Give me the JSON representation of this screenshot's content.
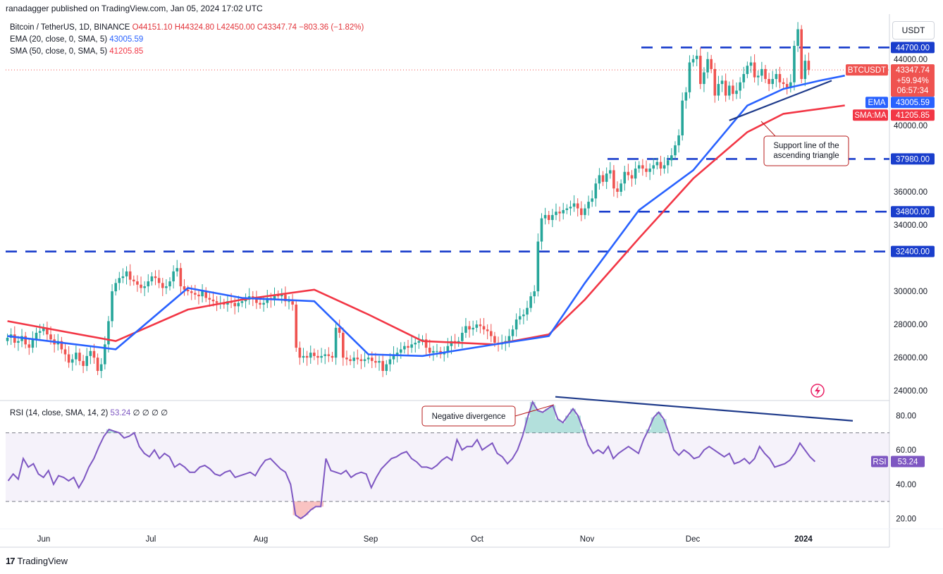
{
  "publisher_line": "ranadagger published on TradingView.com, Jan 05, 2024 17:02 UTC",
  "legend": {
    "symbol": "Bitcoin / TetherUS, 1D, BINANCE",
    "ohlc": "O44151.10 H44324.80 L42450.00 C43347.74 −803.36 (−1.82%)",
    "ema_label": "EMA (20, close, 0, SMA, 5)",
    "ema_value": "43005.59",
    "sma_label": "SMA (50, close, 0, SMA, 5)",
    "sma_value": "41205.85"
  },
  "rsi_legend": {
    "label": "RSI (14, close, SMA, 14, 2)",
    "value": "53.24",
    "extras": "∅ ∅ ∅ ∅"
  },
  "currency_button": "USDT",
  "footer": {
    "brand": "TradingView",
    "mark": "17"
  },
  "colors": {
    "up": "#26a69a",
    "down": "#ef5350",
    "ema": "#2962ff",
    "sma": "#f23645",
    "rsi": "#7e57c2",
    "level": "#1a3ecc"
  },
  "chart_data": [
    {
      "type": "candlestick",
      "symbol": "BTCUSDT",
      "x_ticks": [
        "Jun",
        "Jul",
        "Aug",
        "Sep",
        "Oct",
        "Nov",
        "Dec",
        "2024"
      ],
      "y_ticks": [
        "24000.00",
        "26000.00",
        "28000.00",
        "30000.00",
        "34000.00",
        "36000.00",
        "40000.00",
        "44000.00"
      ],
      "ylim": [
        23500,
        46500
      ],
      "last_price": "43347.74",
      "last_change": "+59.94%",
      "countdown": "06:57:34",
      "price_tag_label": "BTCUSDT",
      "ema_tag": {
        "label": "EMA",
        "value": "43005.59"
      },
      "sma_tag": {
        "label": "SMA:MA",
        "value": "41205.85"
      },
      "horizontal_levels": [
        {
          "value": 44700,
          "label": "44700.00"
        },
        {
          "value": 37980,
          "label": "37980.00"
        },
        {
          "value": 34800,
          "label": "34800.00"
        },
        {
          "value": 32400,
          "label": "32400.00"
        }
      ],
      "close_series": [
        27200,
        27400,
        26900,
        27000,
        27300,
        26800,
        26600,
        27100,
        27500,
        27600,
        27800,
        27400,
        27100,
        26800,
        27000,
        26500,
        26200,
        25700,
        25900,
        26300,
        25800,
        25500,
        26100,
        26400,
        26000,
        25200,
        25600,
        26800,
        28200,
        30000,
        30500,
        30800,
        30900,
        31200,
        30700,
        30600,
        30400,
        30200,
        30300,
        30600,
        30900,
        30800,
        30500,
        30200,
        30300,
        30600,
        31200,
        31400,
        30300,
        30100,
        30000,
        29900,
        29800,
        29700,
        30000,
        29600,
        29500,
        29400,
        29300,
        29300,
        29200,
        29400,
        29300,
        29100,
        29300,
        29400,
        29500,
        29700,
        29600,
        29300,
        29200,
        29300,
        29600,
        29500,
        29800,
        29700,
        29800,
        29400,
        29400,
        29200,
        26600,
        26000,
        26100,
        26000,
        26300,
        26100,
        26000,
        26100,
        26200,
        26100,
        26000,
        27800,
        27500,
        26000,
        25900,
        25800,
        26000,
        25900,
        25800,
        25900,
        26000,
        25800,
        25700,
        25800,
        25200,
        25600,
        25900,
        26200,
        26300,
        26500,
        26700,
        26600,
        26800,
        26900,
        27000,
        27100,
        26600,
        26300,
        26400,
        26400,
        26200,
        26300,
        26700,
        27000,
        26900,
        27000,
        27500,
        27900,
        27700,
        27800,
        28000,
        27900,
        27700,
        27600,
        27300,
        26900,
        26800,
        26900,
        27000,
        27300,
        27700,
        28300,
        28500,
        28600,
        29000,
        29700,
        30000,
        33000,
        34400,
        34600,
        34300,
        34600,
        34800,
        34700,
        34900,
        35000,
        35100,
        35300,
        35000,
        34600,
        35000,
        35400,
        35600,
        36500,
        37000,
        36600,
        37100,
        37300,
        36200,
        36000,
        36500,
        37200,
        37000,
        36800,
        37400,
        37600,
        37400,
        37200,
        37400,
        37600,
        37800,
        37400,
        37600,
        37900,
        38200,
        38800,
        39400,
        41500,
        42000,
        43800,
        44000,
        44200,
        42500,
        43200,
        44000,
        43400,
        41800,
        42500,
        42700,
        41800,
        42400,
        41900,
        42100,
        42600,
        43100,
        43600,
        43800,
        42900,
        43000,
        43400,
        42800,
        42500,
        42800,
        43100,
        42600,
        42500,
        42300,
        42600,
        44800,
        45800,
        42800,
        43900,
        43347.74
      ],
      "ema_points": [
        [
          0,
          27300
        ],
        [
          30,
          26500
        ],
        [
          50,
          30200
        ],
        [
          65,
          29600
        ],
        [
          85,
          29400
        ],
        [
          100,
          26200
        ],
        [
          115,
          26100
        ],
        [
          135,
          26800
        ],
        [
          150,
          27300
        ],
        [
          160,
          30500
        ],
        [
          175,
          34900
        ],
        [
          190,
          37300
        ],
        [
          205,
          41200
        ],
        [
          215,
          42200
        ],
        [
          225,
          42700
        ],
        [
          232,
          43005.59
        ]
      ],
      "sma_points": [
        [
          0,
          28200
        ],
        [
          30,
          27000
        ],
        [
          50,
          28900
        ],
        [
          65,
          29500
        ],
        [
          85,
          30100
        ],
        [
          100,
          28600
        ],
        [
          115,
          27000
        ],
        [
          135,
          26800
        ],
        [
          150,
          27400
        ],
        [
          160,
          29500
        ],
        [
          175,
          33200
        ],
        [
          190,
          36800
        ],
        [
          205,
          39600
        ],
        [
          215,
          40700
        ],
        [
          225,
          41000
        ],
        [
          232,
          41205.85
        ]
      ],
      "annotations": [
        {
          "text_lines": [
            "Support line of the",
            "ascending triangle"
          ]
        }
      ]
    },
    {
      "type": "line",
      "name": "RSI",
      "y_ticks": [
        "20.00",
        "40.00",
        "60.00",
        "80.00"
      ],
      "ylim": [
        14,
        88
      ],
      "bands": [
        30,
        70
      ],
      "last_value": "53.24",
      "tag_label": "RSI",
      "values": [
        42,
        46,
        43,
        55,
        50,
        52,
        46,
        44,
        48,
        40,
        45,
        44,
        42,
        44,
        38,
        43,
        50,
        55,
        62,
        68,
        72,
        71,
        70,
        67,
        68,
        70,
        62,
        58,
        56,
        60,
        55,
        58,
        56,
        50,
        52,
        50,
        47,
        47,
        50,
        51,
        49,
        46,
        45,
        47,
        48,
        44,
        45,
        46,
        47,
        45,
        50,
        54,
        55,
        52,
        49,
        47,
        40,
        22,
        20,
        22,
        25,
        27,
        27,
        55,
        48,
        47,
        46,
        48,
        44,
        46,
        47,
        46,
        38,
        44,
        49,
        52,
        55,
        56,
        58,
        59,
        55,
        53,
        50,
        50,
        49,
        51,
        54,
        56,
        54,
        66,
        60,
        62,
        62,
        66,
        60,
        62,
        64,
        58,
        56,
        52,
        55,
        60,
        68,
        79,
        88,
        83,
        82,
        84,
        86,
        78,
        76,
        80,
        84,
        80,
        72,
        63,
        58,
        60,
        58,
        62,
        55,
        58,
        60,
        62,
        60,
        58,
        66,
        72,
        79,
        82,
        78,
        70,
        60,
        57,
        60,
        58,
        55,
        56,
        60,
        62,
        60,
        58,
        56,
        58,
        52,
        53,
        55,
        52,
        55,
        62,
        58,
        55,
        50,
        51,
        52,
        54,
        58,
        64,
        60,
        56,
        53.24
      ],
      "divergence_note": "Negative divergence"
    }
  ]
}
